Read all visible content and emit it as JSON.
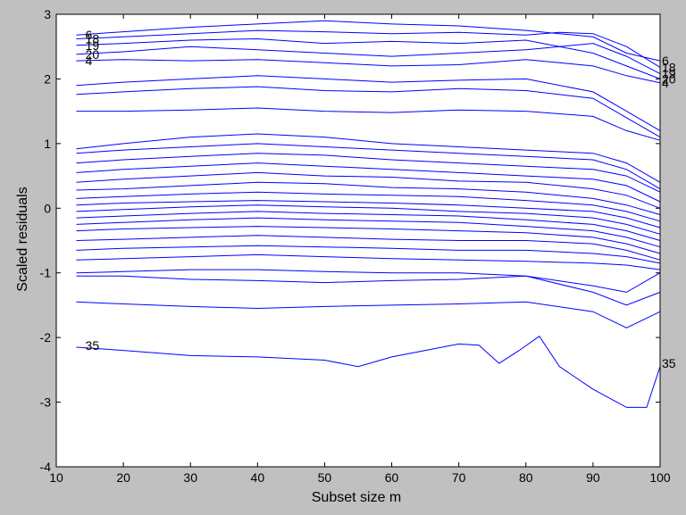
{
  "chart_data": {
    "type": "line",
    "title": "",
    "xlabel": "Subset size m",
    "ylabel": "Scaled residuals",
    "xlim": [
      10,
      100
    ],
    "ylim": [
      -4,
      3
    ],
    "x_ticks": [
      10,
      20,
      30,
      40,
      50,
      60,
      70,
      80,
      90,
      100
    ],
    "y_ticks": [
      -4,
      -3,
      -2,
      -1,
      0,
      1,
      2,
      3
    ],
    "grid": false,
    "legend": "none",
    "colors": {
      "series": "#0000ff",
      "axes_bg": "#ffffff",
      "figure_bg": "#c0c0c0"
    },
    "annotations_left": [
      {
        "text": "6",
        "x": 13,
        "y": 2.68
      },
      {
        "text": "18",
        "x": 13,
        "y": 2.62
      },
      {
        "text": "19",
        "x": 13,
        "y": 2.52
      },
      {
        "text": "20",
        "x": 13,
        "y": 2.38
      },
      {
        "text": "4",
        "x": 13,
        "y": 2.28
      },
      {
        "text": "35",
        "x": 13,
        "y": -2.12
      }
    ],
    "annotations_right": [
      {
        "text": "6",
        "x": 100,
        "y": 2.28
      },
      {
        "text": "18",
        "x": 100,
        "y": 2.18
      },
      {
        "text": "19",
        "x": 100,
        "y": 2.08
      },
      {
        "text": "20",
        "x": 100,
        "y": 2.0
      },
      {
        "text": "4",
        "x": 100,
        "y": 1.94
      },
      {
        "text": "35",
        "x": 100,
        "y": -2.4
      }
    ],
    "series": [
      {
        "id": "35",
        "x": [
          13,
          20,
          30,
          40,
          50,
          55,
          60,
          65,
          70,
          73,
          76,
          79,
          82,
          85,
          90,
          95,
          98,
          100
        ],
        "y": [
          -2.15,
          -2.2,
          -2.28,
          -2.3,
          -2.35,
          -2.45,
          -2.3,
          -2.2,
          -2.1,
          -2.12,
          -2.4,
          -2.2,
          -1.98,
          -2.45,
          -2.8,
          -3.08,
          -3.08,
          -2.45
        ]
      },
      {
        "id": "6",
        "x": [
          13,
          20,
          30,
          40,
          50,
          60,
          70,
          80,
          85,
          90,
          95,
          100
        ],
        "y": [
          2.68,
          2.73,
          2.8,
          2.85,
          2.9,
          2.85,
          2.82,
          2.75,
          2.7,
          2.65,
          2.4,
          2.28
        ]
      },
      {
        "id": "18",
        "x": [
          13,
          20,
          30,
          40,
          50,
          60,
          70,
          80,
          85,
          90,
          95,
          100
        ],
        "y": [
          2.62,
          2.65,
          2.7,
          2.75,
          2.73,
          2.7,
          2.72,
          2.68,
          2.72,
          2.7,
          2.5,
          2.18
        ]
      },
      {
        "id": "19",
        "x": [
          13,
          20,
          30,
          40,
          50,
          60,
          70,
          80,
          85,
          90,
          95,
          100
        ],
        "y": [
          2.52,
          2.55,
          2.6,
          2.62,
          2.55,
          2.58,
          2.55,
          2.6,
          2.5,
          2.55,
          2.35,
          2.08
        ]
      },
      {
        "id": "20",
        "x": [
          13,
          20,
          30,
          40,
          50,
          60,
          70,
          80,
          85,
          90,
          95,
          100
        ],
        "y": [
          2.38,
          2.42,
          2.5,
          2.45,
          2.4,
          2.35,
          2.4,
          2.45,
          2.5,
          2.4,
          2.2,
          2.0
        ]
      },
      {
        "id": "4",
        "x": [
          13,
          20,
          30,
          40,
          50,
          60,
          70,
          80,
          85,
          90,
          95,
          100
        ],
        "y": [
          2.28,
          2.3,
          2.28,
          2.3,
          2.25,
          2.2,
          2.22,
          2.3,
          2.25,
          2.2,
          2.05,
          1.94
        ]
      },
      {
        "x": [
          13,
          20,
          30,
          40,
          50,
          60,
          70,
          80,
          90,
          95,
          100
        ],
        "y": [
          1.9,
          1.95,
          2.0,
          2.05,
          2.0,
          1.95,
          1.98,
          2.0,
          1.8,
          1.5,
          1.2
        ]
      },
      {
        "x": [
          13,
          20,
          30,
          40,
          50,
          60,
          70,
          80,
          90,
          95,
          100
        ],
        "y": [
          1.76,
          1.8,
          1.85,
          1.88,
          1.82,
          1.8,
          1.85,
          1.82,
          1.7,
          1.4,
          1.1
        ]
      },
      {
        "x": [
          13,
          20,
          30,
          40,
          50,
          60,
          70,
          80,
          90,
          95,
          100
        ],
        "y": [
          1.5,
          1.5,
          1.52,
          1.55,
          1.5,
          1.48,
          1.52,
          1.5,
          1.42,
          1.2,
          1.05
        ]
      },
      {
        "x": [
          13,
          20,
          30,
          40,
          50,
          60,
          70,
          80,
          90,
          95,
          100
        ],
        "y": [
          0.92,
          1.0,
          1.1,
          1.15,
          1.1,
          1.0,
          0.95,
          0.9,
          0.85,
          0.7,
          0.4
        ]
      },
      {
        "x": [
          13,
          20,
          30,
          40,
          50,
          60,
          70,
          80,
          90,
          95,
          100
        ],
        "y": [
          0.85,
          0.9,
          0.95,
          1.0,
          0.95,
          0.9,
          0.85,
          0.8,
          0.75,
          0.6,
          0.3
        ]
      },
      {
        "x": [
          13,
          20,
          30,
          40,
          50,
          60,
          70,
          80,
          90,
          95,
          100
        ],
        "y": [
          0.7,
          0.75,
          0.8,
          0.85,
          0.82,
          0.75,
          0.7,
          0.65,
          0.6,
          0.5,
          0.25
        ]
      },
      {
        "x": [
          13,
          20,
          30,
          40,
          50,
          60,
          70,
          80,
          90,
          95,
          100
        ],
        "y": [
          0.55,
          0.6,
          0.65,
          0.7,
          0.65,
          0.6,
          0.55,
          0.5,
          0.45,
          0.35,
          0.1
        ]
      },
      {
        "x": [
          13,
          20,
          30,
          40,
          50,
          60,
          70,
          80,
          90,
          95,
          100
        ],
        "y": [
          0.4,
          0.45,
          0.5,
          0.55,
          0.5,
          0.48,
          0.42,
          0.4,
          0.3,
          0.2,
          0.0
        ]
      },
      {
        "x": [
          13,
          20,
          30,
          40,
          50,
          60,
          70,
          80,
          90,
          95,
          100
        ],
        "y": [
          0.28,
          0.3,
          0.35,
          0.4,
          0.38,
          0.32,
          0.3,
          0.25,
          0.15,
          0.05,
          -0.1
        ]
      },
      {
        "x": [
          13,
          20,
          30,
          40,
          50,
          60,
          70,
          80,
          90,
          95,
          100
        ],
        "y": [
          0.15,
          0.18,
          0.22,
          0.25,
          0.22,
          0.2,
          0.18,
          0.12,
          0.05,
          -0.05,
          -0.2
        ]
      },
      {
        "x": [
          13,
          20,
          30,
          40,
          50,
          60,
          70,
          80,
          90,
          95,
          100
        ],
        "y": [
          0.05,
          0.08,
          0.1,
          0.12,
          0.1,
          0.08,
          0.05,
          0.0,
          -0.05,
          -0.15,
          -0.3
        ]
      },
      {
        "x": [
          13,
          20,
          30,
          40,
          50,
          60,
          70,
          80,
          90,
          95,
          100
        ],
        "y": [
          -0.05,
          -0.02,
          0.02,
          0.05,
          0.02,
          0.0,
          -0.05,
          -0.08,
          -0.15,
          -0.25,
          -0.4
        ]
      },
      {
        "x": [
          13,
          20,
          30,
          40,
          50,
          60,
          70,
          80,
          90,
          95,
          100
        ],
        "y": [
          -0.15,
          -0.12,
          -0.08,
          -0.05,
          -0.08,
          -0.1,
          -0.12,
          -0.18,
          -0.25,
          -0.35,
          -0.5
        ]
      },
      {
        "x": [
          13,
          20,
          30,
          40,
          50,
          60,
          70,
          80,
          90,
          95,
          100
        ],
        "y": [
          -0.25,
          -0.22,
          -0.18,
          -0.15,
          -0.18,
          -0.2,
          -0.22,
          -0.28,
          -0.35,
          -0.45,
          -0.6
        ]
      },
      {
        "x": [
          13,
          20,
          30,
          40,
          50,
          60,
          70,
          80,
          90,
          95,
          100
        ],
        "y": [
          -0.35,
          -0.32,
          -0.3,
          -0.28,
          -0.3,
          -0.32,
          -0.35,
          -0.38,
          -0.45,
          -0.55,
          -0.7
        ]
      },
      {
        "x": [
          13,
          20,
          30,
          40,
          50,
          60,
          70,
          80,
          90,
          95,
          100
        ],
        "y": [
          -0.5,
          -0.48,
          -0.45,
          -0.42,
          -0.45,
          -0.48,
          -0.5,
          -0.5,
          -0.55,
          -0.65,
          -0.8
        ]
      },
      {
        "x": [
          13,
          20,
          30,
          40,
          50,
          60,
          70,
          80,
          90,
          95,
          100
        ],
        "y": [
          -0.65,
          -0.62,
          -0.6,
          -0.58,
          -0.6,
          -0.62,
          -0.65,
          -0.65,
          -0.7,
          -0.75,
          -0.85
        ]
      },
      {
        "x": [
          13,
          20,
          30,
          40,
          50,
          60,
          70,
          80,
          90,
          95,
          100
        ],
        "y": [
          -0.8,
          -0.78,
          -0.75,
          -0.72,
          -0.75,
          -0.78,
          -0.8,
          -0.82,
          -0.85,
          -0.88,
          -0.95
        ]
      },
      {
        "x": [
          13,
          20,
          30,
          40,
          50,
          60,
          70,
          80,
          90,
          95,
          100
        ],
        "y": [
          -1.0,
          -0.98,
          -0.95,
          -0.95,
          -0.98,
          -1.0,
          -1.0,
          -1.05,
          -1.2,
          -1.3,
          -1.0
        ]
      },
      {
        "x": [
          13,
          20,
          30,
          40,
          50,
          60,
          70,
          80,
          90,
          95,
          100
        ],
        "y": [
          -1.05,
          -1.05,
          -1.1,
          -1.12,
          -1.15,
          -1.12,
          -1.1,
          -1.05,
          -1.3,
          -1.5,
          -1.3
        ]
      },
      {
        "x": [
          13,
          20,
          30,
          40,
          50,
          60,
          70,
          80,
          90,
          95,
          100
        ],
        "y": [
          -1.45,
          -1.48,
          -1.52,
          -1.55,
          -1.52,
          -1.5,
          -1.48,
          -1.45,
          -1.6,
          -1.85,
          -1.6
        ]
      }
    ]
  }
}
